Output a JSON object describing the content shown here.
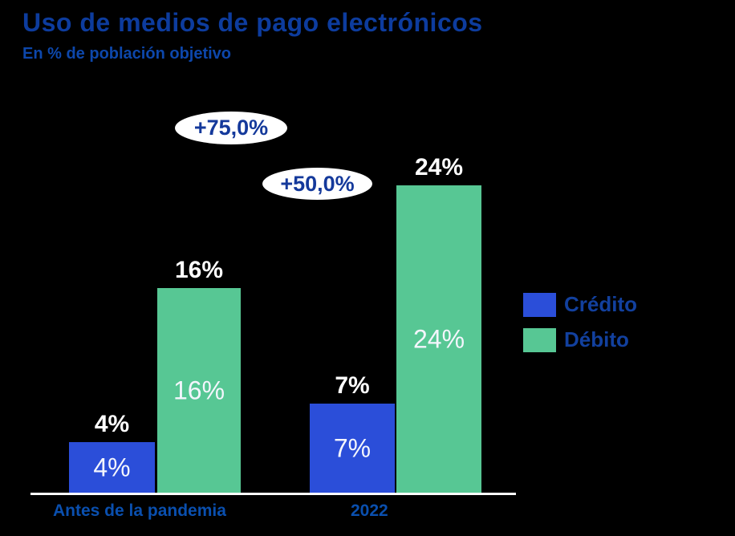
{
  "header": {
    "title": "Uso de medios de pago electrónicos",
    "subtitle": "En % de población objetivo"
  },
  "colors": {
    "background": "#000000",
    "credit_blue": "#2B4ED9",
    "debit_green": "#57C794",
    "title_blue": "#0D3C9E",
    "subtitle_blue": "#0D47AB",
    "axis_label_blue": "#0A4FAE",
    "legend_text_blue": "#12409E",
    "annotation_text_blue": "#14399B",
    "annotation_bg": "#FFFFFF",
    "bar_label_white": "#FFFFFF",
    "axis_line_white": "#FFFFFF"
  },
  "chart_data": {
    "type": "bar",
    "title": "Uso de medios de pago electrónicos",
    "subtitle": "En % de población objetivo",
    "categories": [
      "Antes de la pandemia",
      "2022"
    ],
    "series": [
      {
        "name": "Crédito",
        "color": "#2B4ED9",
        "values": [
          4,
          7
        ],
        "labels": [
          "4%",
          "7%"
        ]
      },
      {
        "name": "Débito",
        "color": "#57C794",
        "values": [
          16,
          24
        ],
        "labels": [
          "16%",
          "24%"
        ]
      }
    ],
    "annotations": [
      {
        "text": "+75,0%"
      },
      {
        "text": "+50,0%"
      }
    ],
    "xlabel": "",
    "ylabel": "",
    "value_suffix": "%",
    "ylim": [
      0,
      24
    ],
    "grid": false,
    "y_axis_visible": false,
    "legend_position": "right",
    "value_labels": "above-and-inside"
  }
}
